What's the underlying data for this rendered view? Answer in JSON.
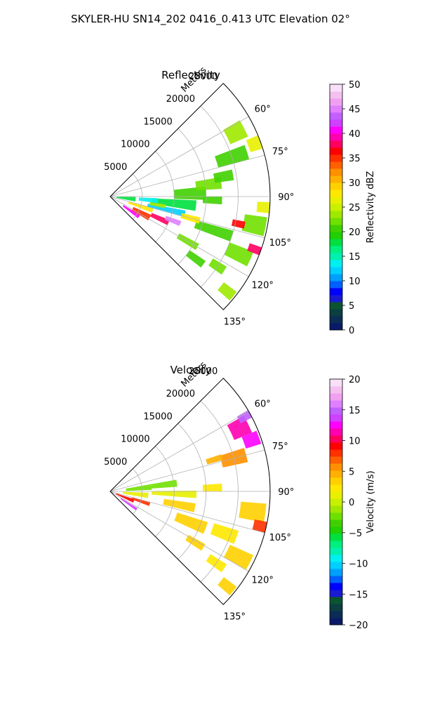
{
  "figure": {
    "suptitle": "SKYLER-HU  SN14_202  0416_0.413 UTC Elevation 02°"
  },
  "chart_data": [
    {
      "type": "heatmap",
      "title": "Reflectivity",
      "radial_label": "Meters",
      "r_ticks": [
        5000,
        10000,
        15000,
        20000,
        25000
      ],
      "r_tick_labels": [
        "5000",
        "10000",
        "15000",
        "20000",
        "25000"
      ],
      "rlim": [
        0,
        25000
      ],
      "theta_ticks": [
        60,
        75,
        90,
        105,
        120,
        135
      ],
      "theta_tick_labels": [
        "60°",
        "75°",
        "90°",
        "105°",
        "120°",
        "135°"
      ],
      "thetalim": [
        45,
        135
      ],
      "grid": true,
      "colorbar": {
        "label": "Reflectivity dBZ",
        "min": 0,
        "max": 50,
        "ticks": [
          0,
          5,
          10,
          15,
          20,
          25,
          30,
          35,
          40,
          45,
          50
        ],
        "tick_labels": [
          "0",
          "5",
          "10",
          "15",
          "20",
          "25",
          "30",
          "35",
          "40",
          "45",
          "50"
        ],
        "colors": [
          "#0a1a66",
          "#0b2d55",
          "#0b3f40",
          "#0a5530",
          "#1a1ad0",
          "#0000ff",
          "#0060ff",
          "#00a0ff",
          "#00d0ff",
          "#00f0f0",
          "#00f0b0",
          "#00f080",
          "#00e040",
          "#20d000",
          "#40d000",
          "#70e000",
          "#a0e800",
          "#c8f000",
          "#e8f000",
          "#ffe800",
          "#ffd000",
          "#ffb000",
          "#ff9000",
          "#ff6000",
          "#ff3000",
          "#ff0000",
          "#ff0060",
          "#ff00b0",
          "#ff00ff",
          "#d040ff",
          "#c060ff",
          "#e080ff",
          "#f0a0f0",
          "#f4c0f0",
          "#f8e0f8"
        ]
      },
      "cells": [
        {
          "r": 4000,
          "az": 125,
          "dr": 3000,
          "daz": 6,
          "value": 40
        },
        {
          "r": 5500,
          "az": 118,
          "dr": 3000,
          "daz": 8,
          "value": 35
        },
        {
          "r": 5000,
          "az": 108,
          "dr": 4000,
          "daz": 6,
          "value": 28
        },
        {
          "r": 8500,
          "az": 114,
          "dr": 3000,
          "daz": 5,
          "value": 38
        },
        {
          "r": 10500,
          "az": 111,
          "dr": 2500,
          "daz": 4,
          "value": 45
        },
        {
          "r": 9000,
          "az": 103,
          "dr": 6000,
          "daz": 5,
          "value": 12
        },
        {
          "r": 10000,
          "az": 96,
          "dr": 7000,
          "daz": 7,
          "value": 18
        },
        {
          "r": 12500,
          "az": 88,
          "dr": 5000,
          "daz": 8,
          "value": 20
        },
        {
          "r": 15500,
          "az": 83,
          "dr": 4000,
          "daz": 6,
          "value": 22
        },
        {
          "r": 20000,
          "az": 72,
          "dr": 5000,
          "daz": 6,
          "value": 21
        },
        {
          "r": 22000,
          "az": 63,
          "dr": 3000,
          "daz": 7,
          "value": 23
        },
        {
          "r": 24000,
          "az": 70,
          "dr": 2000,
          "daz": 5,
          "value": 27
        },
        {
          "r": 18000,
          "az": 80,
          "dr": 3000,
          "daz": 5,
          "value": 20
        },
        {
          "r": 16000,
          "az": 92,
          "dr": 3000,
          "daz": 4,
          "value": 21
        },
        {
          "r": 23000,
          "az": 101,
          "dr": 3500,
          "daz": 7,
          "value": 22
        },
        {
          "r": 24000,
          "az": 94,
          "dr": 2000,
          "daz": 4,
          "value": 26
        },
        {
          "r": 20500,
          "az": 102,
          "dr": 2000,
          "daz": 3,
          "value": 37
        },
        {
          "r": 17000,
          "az": 108,
          "dr": 6000,
          "daz": 5,
          "value": 20
        },
        {
          "r": 22000,
          "az": 114,
          "dr": 4000,
          "daz": 6,
          "value": 22
        },
        {
          "r": 24000,
          "az": 110,
          "dr": 2000,
          "daz": 3,
          "value": 38
        },
        {
          "r": 14000,
          "az": 120,
          "dr": 3500,
          "daz": 4,
          "value": 22
        },
        {
          "r": 16500,
          "az": 126,
          "dr": 3000,
          "daz": 4,
          "value": 20
        },
        {
          "r": 20000,
          "az": 123,
          "dr": 2500,
          "daz": 4,
          "value": 22
        },
        {
          "r": 23500,
          "az": 129,
          "dr": 2500,
          "daz": 4,
          "value": 24
        },
        {
          "r": 2500,
          "az": 96,
          "dr": 3000,
          "daz": 10,
          "value": 18
        },
        {
          "r": 6000,
          "az": 95,
          "dr": 3000,
          "daz": 6,
          "value": 14
        },
        {
          "r": 7500,
          "az": 100,
          "dr": 2500,
          "daz": 4,
          "value": 23
        },
        {
          "r": 13000,
          "az": 105,
          "dr": 3000,
          "daz": 4,
          "value": 28
        }
      ]
    },
    {
      "type": "heatmap",
      "title": "Velocity",
      "radial_label": "Meters",
      "r_ticks": [
        5000,
        10000,
        15000,
        20000,
        25000
      ],
      "r_tick_labels": [
        "5000",
        "10000",
        "15000",
        "20000",
        "25000"
      ],
      "rlim": [
        0,
        25000
      ],
      "theta_ticks": [
        60,
        75,
        90,
        105,
        120,
        135
      ],
      "theta_tick_labels": [
        "60°",
        "75°",
        "90°",
        "105°",
        "120°",
        "135°"
      ],
      "thetalim": [
        45,
        135
      ],
      "grid": true,
      "colorbar": {
        "label": "Velocity (m/s)",
        "min": -20,
        "max": 20,
        "ticks": [
          -20,
          -15,
          -10,
          -5,
          0,
          5,
          10,
          15,
          20
        ],
        "tick_labels": [
          "−20",
          "−15",
          "−10",
          "−5",
          "0",
          "5",
          "10",
          "15",
          "20"
        ],
        "colors": [
          "#0a1a66",
          "#0b2d55",
          "#0b3f40",
          "#0a5530",
          "#1a1ad0",
          "#0000ff",
          "#0060ff",
          "#00a0ff",
          "#00d0ff",
          "#00f0f0",
          "#00f0b0",
          "#00f080",
          "#00e040",
          "#20d000",
          "#40d000",
          "#70e000",
          "#a0e800",
          "#c8f000",
          "#e8f000",
          "#ffe800",
          "#ffd000",
          "#ffb000",
          "#ff9000",
          "#ff6000",
          "#ff3000",
          "#ff0000",
          "#ff0060",
          "#ff00b0",
          "#ff00ff",
          "#d040ff",
          "#c060ff",
          "#e080ff",
          "#f0a0f0",
          "#f4c0f0",
          "#f8e0f8"
        ]
      },
      "cells": [
        {
          "r": 3500,
          "az": 124,
          "dr": 3000,
          "daz": 5,
          "value": 14
        },
        {
          "r": 2500,
          "az": 112,
          "dr": 3000,
          "daz": 8,
          "value": 9
        },
        {
          "r": 5000,
          "az": 108,
          "dr": 3000,
          "daz": 5,
          "value": 8
        },
        {
          "r": 4000,
          "az": 96,
          "dr": 4000,
          "daz": 8,
          "value": 1
        },
        {
          "r": 4500,
          "az": 84,
          "dr": 4000,
          "daz": 8,
          "value": -2
        },
        {
          "r": 8500,
          "az": 83,
          "dr": 4000,
          "daz": 6,
          "value": -2
        },
        {
          "r": 10000,
          "az": 92,
          "dr": 7000,
          "daz": 5,
          "value": 1
        },
        {
          "r": 11000,
          "az": 101,
          "dr": 5000,
          "daz": 6,
          "value": 3
        },
        {
          "r": 13500,
          "az": 111,
          "dr": 5000,
          "daz": 7,
          "value": 3
        },
        {
          "r": 16000,
          "az": 88,
          "dr": 3000,
          "daz": 4,
          "value": 2
        },
        {
          "r": 20000,
          "az": 75,
          "dr": 4000,
          "daz": 6,
          "value": 6
        },
        {
          "r": 22500,
          "az": 64,
          "dr": 3000,
          "daz": 7,
          "value": 11
        },
        {
          "r": 23500,
          "az": 70,
          "dr": 2500,
          "daz": 5,
          "value": 12
        },
        {
          "r": 24000,
          "az": 61,
          "dr": 2000,
          "daz": 3,
          "value": 15
        },
        {
          "r": 22500,
          "az": 98,
          "dr": 4000,
          "daz": 7,
          "value": 3
        },
        {
          "r": 24000,
          "az": 103,
          "dr": 2000,
          "daz": 4,
          "value": 8
        },
        {
          "r": 19000,
          "az": 110,
          "dr": 4000,
          "daz": 6,
          "value": 2
        },
        {
          "r": 22500,
          "az": 117,
          "dr": 4000,
          "daz": 6,
          "value": 3
        },
        {
          "r": 15500,
          "az": 121,
          "dr": 3000,
          "daz": 4,
          "value": 3
        },
        {
          "r": 20000,
          "az": 124,
          "dr": 3000,
          "daz": 4,
          "value": 2
        },
        {
          "r": 23500,
          "az": 129,
          "dr": 2500,
          "daz": 4,
          "value": 3
        },
        {
          "r": 17000,
          "az": 73,
          "dr": 2500,
          "daz": 3,
          "value": 5
        }
      ]
    }
  ]
}
